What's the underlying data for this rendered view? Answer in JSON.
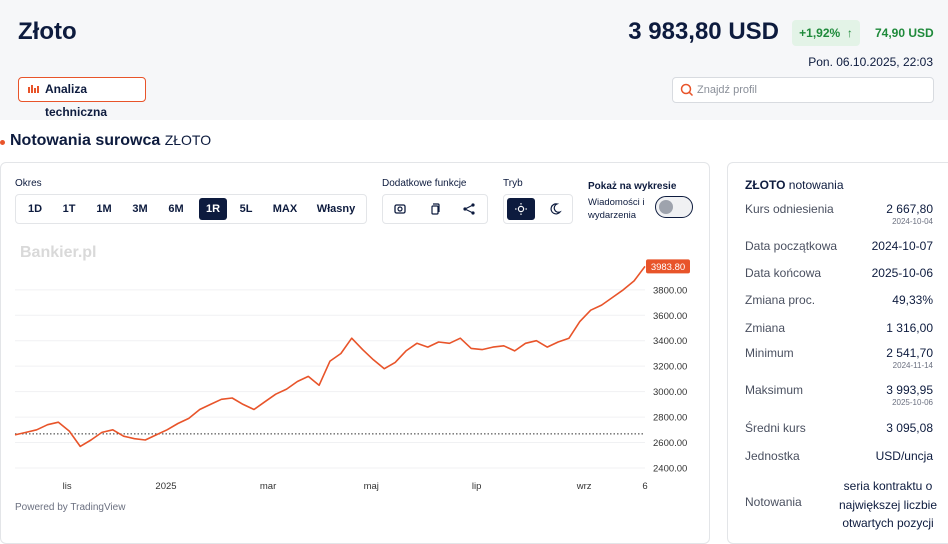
{
  "header": {
    "title": "Złoto",
    "price": "3 983,80 USD",
    "change_pct": "+1,92%",
    "change_abs": "74,90 USD",
    "datetime": "Pon. 06.10.2025, 22:03",
    "button": "Analiza techniczna",
    "search_placeholder": "Znajdź profil"
  },
  "section": {
    "title": "Notowania surowca",
    "subtitle": "ZŁOTO"
  },
  "controls": {
    "period_label": "Okres",
    "periods": [
      "1D",
      "1T",
      "1M",
      "3M",
      "6M",
      "1R",
      "5L",
      "MAX",
      "Własny"
    ],
    "active_period": "1R",
    "features_label": "Dodatkowe funkcje",
    "mode_label": "Tryb",
    "show_label": "Pokaż na wykresie",
    "news_label": "Wiadomości i wydarzenia"
  },
  "chart_data": {
    "type": "line",
    "watermark": "Bankier.pl",
    "footer": "Powered by TradingView",
    "color": "#e8542a",
    "values": [
      2660,
      2680,
      2700,
      2740,
      2760,
      2690,
      2570,
      2620,
      2680,
      2700,
      2650,
      2630,
      2620,
      2660,
      2700,
      2750,
      2790,
      2860,
      2900,
      2940,
      2950,
      2900,
      2860,
      2920,
      2980,
      3020,
      3080,
      3120,
      3050,
      3240,
      3300,
      3420,
      3330,
      3250,
      3180,
      3230,
      3320,
      3380,
      3350,
      3390,
      3380,
      3420,
      3340,
      3330,
      3350,
      3360,
      3320,
      3380,
      3400,
      3350,
      3390,
      3420,
      3550,
      3640,
      3680,
      3740,
      3800,
      3870,
      3983.8
    ],
    "xlim": [
      0,
      58
    ],
    "xticks": [
      {
        "value": 4.8,
        "label": "lis"
      },
      {
        "value": 13.9,
        "label": "2025"
      },
      {
        "value": 23.3,
        "label": "mar"
      },
      {
        "value": 32.8,
        "label": "maj"
      },
      {
        "value": 42.5,
        "label": "lip"
      },
      {
        "value": 52.4,
        "label": "wrz"
      },
      {
        "value": 58,
        "label": "6"
      }
    ],
    "ylim": [
      2345,
      4050
    ],
    "yticks": [
      {
        "value": 2400,
        "label": "2400.00"
      },
      {
        "value": 2600,
        "label": "2600.00"
      },
      {
        "value": 2800,
        "label": "2800.00"
      },
      {
        "value": 3000,
        "label": "3000.00"
      },
      {
        "value": 3200,
        "label": "3200.00"
      },
      {
        "value": 3400,
        "label": "3400.00"
      },
      {
        "value": 3600,
        "label": "3600.00"
      },
      {
        "value": 3800,
        "label": "3800.00"
      }
    ],
    "grid": true,
    "reference": 2667.8,
    "last_price": {
      "value": 3983.8,
      "label": "3983.80"
    }
  },
  "stats": {
    "title": "ZŁOTO",
    "subtitle": "notowania",
    "rows": [
      {
        "label": "Kurs odniesienia",
        "value": "2 667,80",
        "sub": "2024-10-04"
      },
      {
        "label": "Data początkowa",
        "value": "2024-10-07"
      },
      {
        "label": "Data końcowa",
        "value": "2025-10-06"
      },
      {
        "label": "Zmiana proc.",
        "value": "49,33%"
      },
      {
        "label": "Zmiana",
        "value": "1 316,00"
      },
      {
        "label": "Minimum",
        "value": "2 541,70",
        "sub": "2024-11-14"
      },
      {
        "label": "Maksimum",
        "value": "3 993,95",
        "sub": "2025-10-06"
      },
      {
        "label": "Średni kurs",
        "value": "3 095,08"
      },
      {
        "label": "Jednostka",
        "value": "USD/uncja"
      },
      {
        "label": "Notowania",
        "value": "seria kontraktu o największej liczbie otwartych pozycji"
      }
    ]
  }
}
